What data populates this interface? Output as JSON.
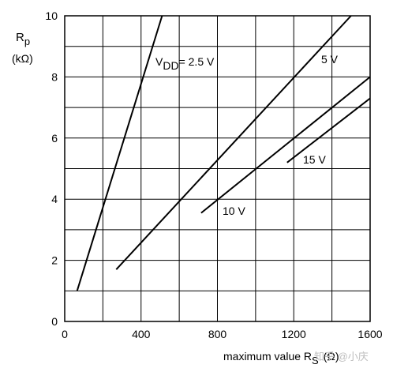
{
  "chart_data": {
    "type": "line",
    "ylabel_main": "R",
    "ylabel_sub": "p",
    "ylabel_unit": "(kΩ)",
    "xlabel_main": "maximum value R",
    "xlabel_sub": "S",
    "xlabel_unit": "(Ω)",
    "xlim": [
      0,
      1600
    ],
    "ylim": [
      0,
      10
    ],
    "x_major_ticks": [
      0,
      400,
      800,
      1200,
      1600
    ],
    "x_tick_labels": [
      "0",
      "400",
      "800",
      "1200",
      "1600"
    ],
    "y_major_ticks": [
      0,
      2,
      4,
      6,
      8,
      10
    ],
    "y_tick_labels": [
      "0",
      "2",
      "4",
      "6",
      "8",
      "10"
    ],
    "grid": true,
    "series": [
      {
        "name": "VDD= 2.5 V",
        "label_main": "V",
        "label_sub": "DD",
        "label_rest": "= 2.5 V",
        "points": [
          [
            65,
            1.0
          ],
          [
            510,
            10.0
          ]
        ]
      },
      {
        "name": "5 V",
        "label_main": "5 V",
        "label_sub": "",
        "label_rest": "",
        "points": [
          [
            270,
            1.7
          ],
          [
            1500,
            10.0
          ]
        ]
      },
      {
        "name": "10 V",
        "label_main": "10 V",
        "label_sub": "",
        "label_rest": "",
        "points": [
          [
            715,
            3.55
          ],
          [
            1600,
            8.0
          ]
        ]
      },
      {
        "name": "15 V",
        "label_main": "15 V",
        "label_sub": "",
        "label_rest": "",
        "points": [
          [
            1165,
            5.2
          ],
          [
            1600,
            7.3
          ]
        ]
      }
    ]
  },
  "watermark": "知乎 @小庆"
}
